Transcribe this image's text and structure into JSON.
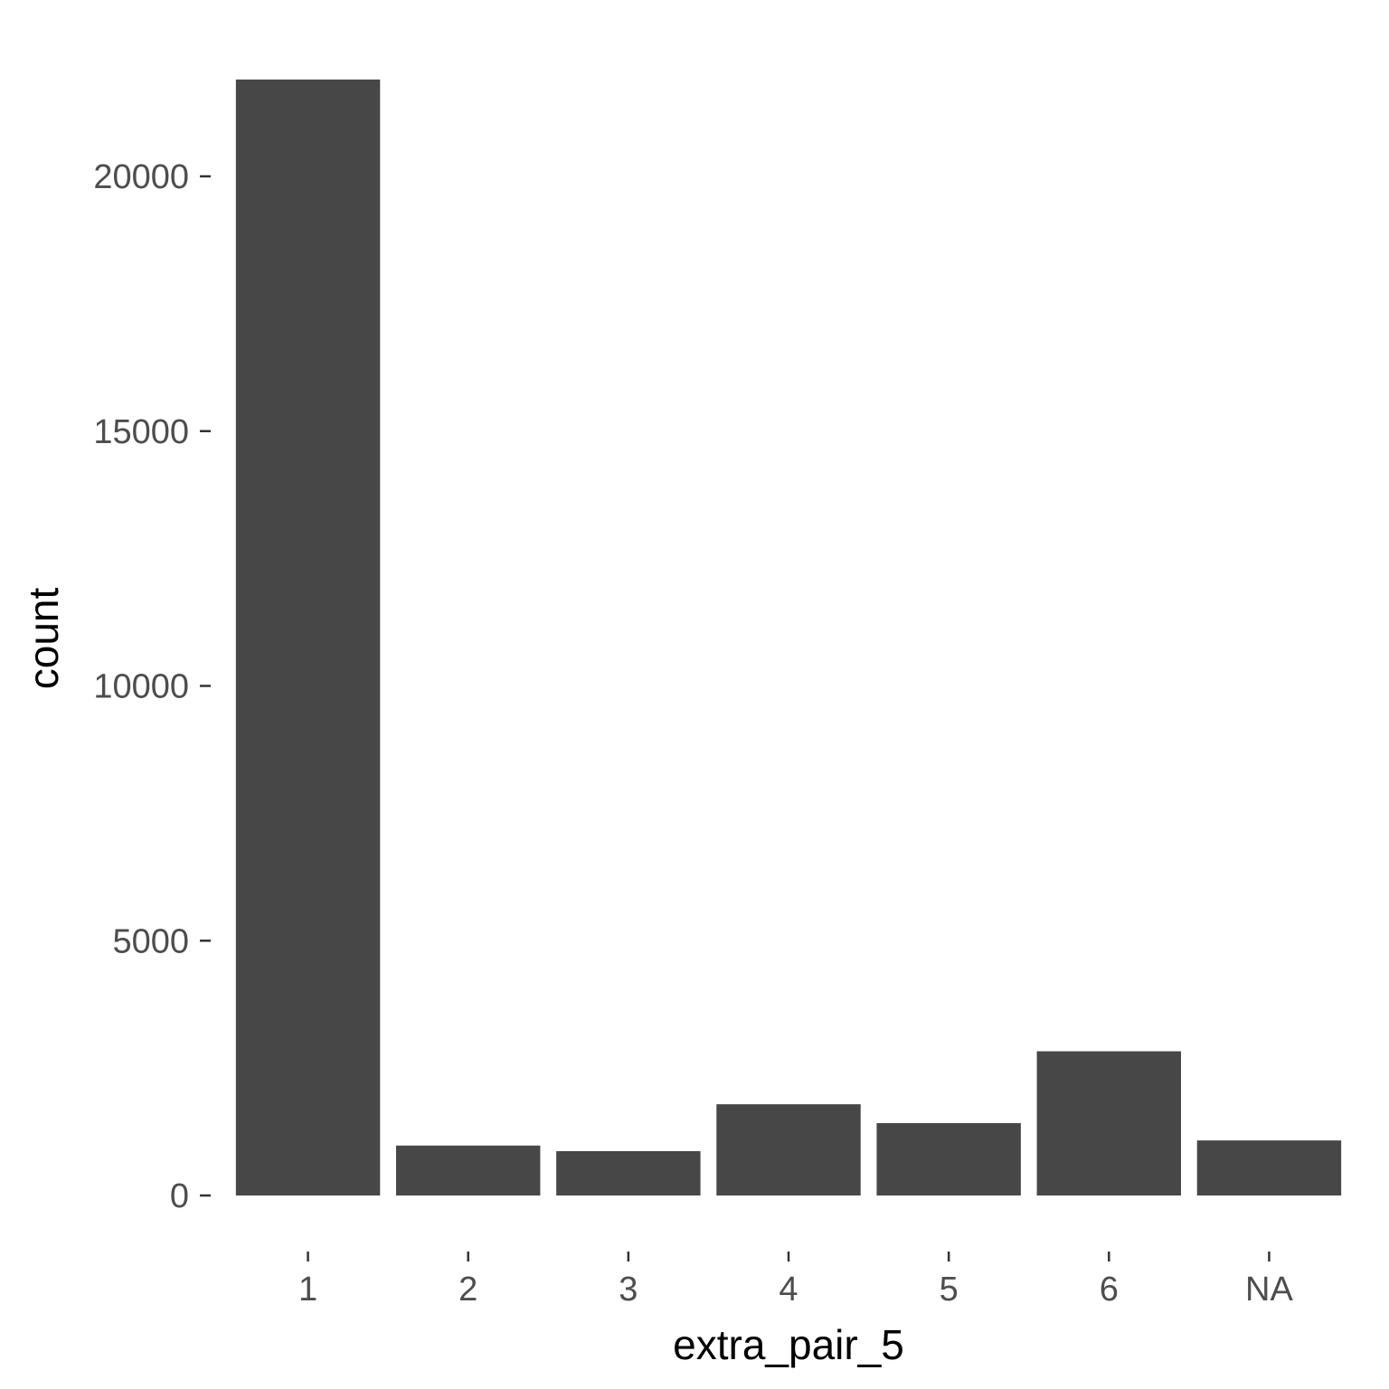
{
  "chart_data": {
    "type": "bar",
    "categories": [
      "1",
      "2",
      "3",
      "4",
      "5",
      "6",
      "NA"
    ],
    "values": [
      21900,
      980,
      870,
      1790,
      1420,
      2830,
      1080
    ],
    "xlabel": "extra_pair_5",
    "ylabel": "count",
    "ylim": [
      0,
      22000
    ],
    "yticks": [
      0,
      5000,
      10000,
      15000,
      20000
    ],
    "ytick_labels": [
      "0",
      "5000",
      "10000",
      "15000",
      "20000"
    ],
    "bar_color": "#474747",
    "grid": false,
    "legend": "none"
  }
}
